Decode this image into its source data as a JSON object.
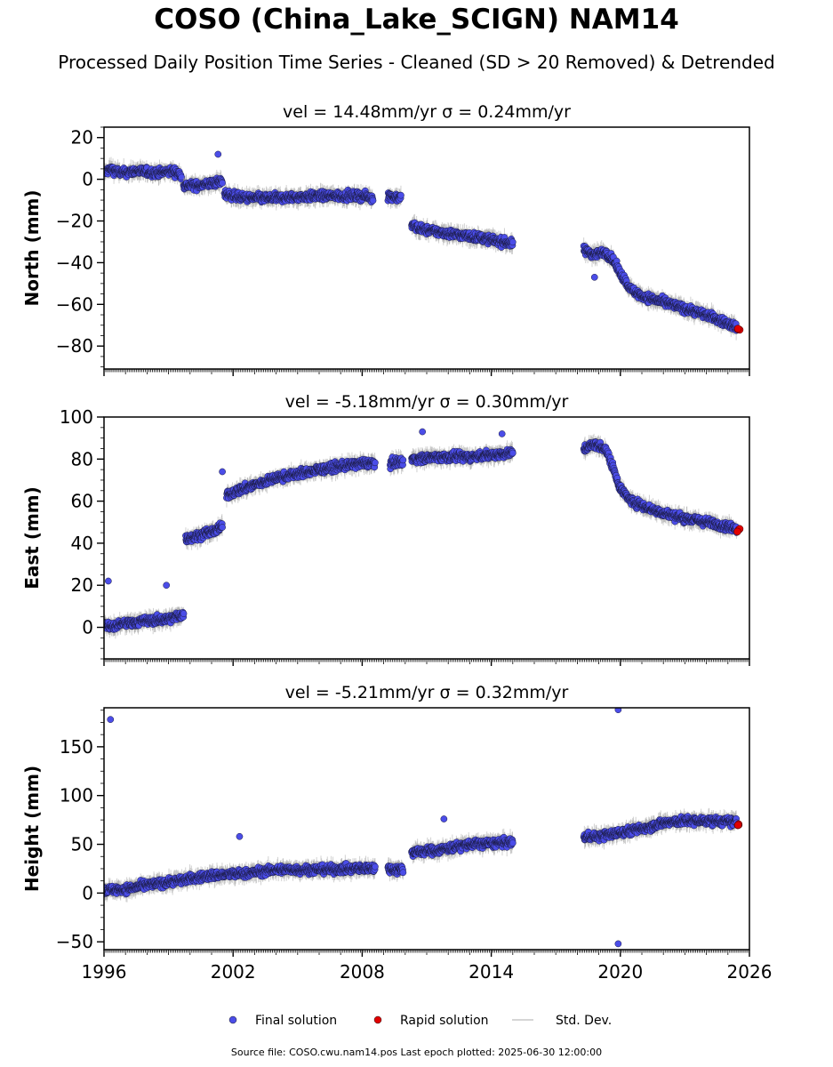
{
  "header": {
    "title": "COSO (China_Lake_SCIGN) NAM14",
    "subtitle": "Processed Daily Position Time Series - Cleaned (SD > 20 Removed) & Detrended"
  },
  "footer": {
    "source_text": "Source file: COSO.cwu.nam14.pos  Last epoch plotted: 2025-06-30 12:00:00"
  },
  "legend": {
    "placement": "bottom-center",
    "items": [
      {
        "label": "Final solution",
        "color": "#4b4de8"
      },
      {
        "label": "Rapid solution",
        "color": "#e00000"
      },
      {
        "label": "Std. Dev.",
        "color": "#c8c8c8"
      }
    ]
  },
  "chart_data": [
    {
      "type": "scatter",
      "title": "vel = 14.48mm/yr   σ = 0.24mm/yr",
      "ylabel": "North (mm)",
      "xlim": [
        1996,
        2026
      ],
      "ylim": [
        -91,
        25
      ],
      "yticks": [
        20,
        0,
        -20,
        -40,
        -60,
        -80
      ],
      "xticks": [
        1996,
        2002,
        2008,
        2014,
        2020,
        2026
      ],
      "series": [
        {
          "name": "Final solution",
          "segments": [
            {
              "x": [
                1996.0,
                1996.3,
                1996.8,
                1997.5,
                1998.5,
                1999.2,
                1999.6
              ],
              "y": [
                3,
                5,
                3,
                4,
                3,
                4,
                2
              ]
            },
            {
              "x": [
                1999.7,
                2000.3,
                2001.0,
                2001.5
              ],
              "y": [
                -3,
                -3,
                -2,
                -1
              ]
            },
            {
              "x": [
                2001.6,
                2002.5,
                2004.0,
                2006.0,
                2008.0,
                2008.5
              ],
              "y": [
                -7,
                -9,
                -9,
                -8,
                -8,
                -9
              ]
            },
            {
              "x": [
                2009.2,
                2009.8
              ],
              "y": [
                -8,
                -9
              ]
            },
            {
              "x": [
                2010.3,
                2010.8,
                2012.0,
                2013.5,
                2015.0
              ],
              "y": [
                -22,
                -24,
                -26,
                -28,
                -31
              ]
            },
            {
              "x": [
                2018.3,
                2018.8,
                2019.3,
                2019.6,
                2020.0,
                2020.5,
                2021.0,
                2022.0,
                2023.0,
                2024.0,
                2025.4
              ],
              "y": [
                -34,
                -36,
                -35,
                -38,
                -45,
                -53,
                -56,
                -59,
                -62,
                -65,
                -71
              ]
            }
          ]
        },
        {
          "name": "Rapid solution",
          "x": [
            2025.5
          ],
          "y": [
            -72
          ]
        }
      ],
      "outliers": [
        {
          "x": 2001.3,
          "y": 12
        },
        {
          "x": 2018.8,
          "y": -47
        }
      ]
    },
    {
      "type": "scatter",
      "title": "vel = -5.18mm/yr   σ = 0.30mm/yr",
      "ylabel": "East (mm)",
      "xlim": [
        1996,
        2026
      ],
      "ylim": [
        -15,
        100
      ],
      "yticks": [
        100,
        80,
        60,
        40,
        20,
        0
      ],
      "xticks": [
        1996,
        2002,
        2008,
        2014,
        2020,
        2026
      ],
      "series": [
        {
          "name": "Final solution",
          "segments": [
            {
              "x": [
                1996.0,
                1996.3,
                1997.0,
                1998.0,
                1999.0,
                1999.7
              ],
              "y": [
                2,
                0,
                2,
                3,
                4,
                6
              ]
            },
            {
              "x": [
                1999.8,
                2000.5,
                2001.2,
                2001.5
              ],
              "y": [
                42,
                44,
                46,
                48
              ]
            },
            {
              "x": [
                2001.7,
                2002.5,
                2004.0,
                2006.0,
                2008.0,
                2008.6
              ],
              "y": [
                63,
                66,
                71,
                75,
                78,
                78
              ]
            },
            {
              "x": [
                2009.3,
                2009.9
              ],
              "y": [
                78,
                79
              ]
            },
            {
              "x": [
                2010.3,
                2011.5,
                2013.0,
                2015.0
              ],
              "y": [
                80,
                81,
                81,
                83
              ]
            },
            {
              "x": [
                2018.3,
                2018.8,
                2019.3,
                2019.7,
                2020.0,
                2020.5,
                2021.5,
                2022.5,
                2023.5,
                2024.5,
                2025.4
              ],
              "y": [
                85,
                87,
                85,
                75,
                66,
                60,
                56,
                53,
                51,
                49,
                47
              ]
            }
          ]
        },
        {
          "name": "Rapid solution",
          "x": [
            2025.5
          ],
          "y": [
            46
          ]
        }
      ],
      "outliers": [
        {
          "x": 1996.2,
          "y": 22
        },
        {
          "x": 1998.9,
          "y": 20
        },
        {
          "x": 2010.8,
          "y": 93
        },
        {
          "x": 2014.5,
          "y": 92
        },
        {
          "x": 2001.5,
          "y": 74
        }
      ]
    },
    {
      "type": "scatter",
      "title": "vel = -5.21mm/yr   σ = 0.32mm/yr",
      "ylabel": "Height (mm)",
      "xlim": [
        1996,
        2026
      ],
      "ylim": [
        -58,
        190
      ],
      "yticks": [
        150,
        100,
        50,
        0,
        -50
      ],
      "xticks": [
        1996,
        2002,
        2008,
        2014,
        2020,
        2026
      ],
      "xticklabels": [
        "1996",
        "2002",
        "2008",
        "2014",
        "2020",
        "2026"
      ],
      "series": [
        {
          "name": "Final solution",
          "segments": [
            {
              "x": [
                1996.0,
                1997.0,
                1998.0,
                1999.5,
                2001.0,
                2002.5,
                2004.0,
                2006.0,
                2008.0,
                2008.6
              ],
              "y": [
                3,
                4,
                8,
                13,
                18,
                20,
                24,
                24,
                25,
                26
              ]
            },
            {
              "x": [
                2009.2,
                2009.9
              ],
              "y": [
                25,
                24
              ]
            },
            {
              "x": [
                2010.3,
                2011.5,
                2013.0,
                2015.0
              ],
              "y": [
                42,
                44,
                50,
                52
              ]
            },
            {
              "x": [
                2018.3,
                2019.0,
                2020.0,
                2021.0,
                2022.0,
                2023.0,
                2024.0,
                2025.4
              ],
              "y": [
                58,
                58,
                62,
                66,
                72,
                74,
                74,
                73
              ]
            }
          ]
        },
        {
          "name": "Rapid solution",
          "x": [
            2025.5
          ],
          "y": [
            70
          ]
        }
      ],
      "outliers": [
        {
          "x": 1996.3,
          "y": 178
        },
        {
          "x": 2019.9,
          "y": 188
        },
        {
          "x": 2019.9,
          "y": -52
        },
        {
          "x": 2002.3,
          "y": 58
        },
        {
          "x": 2011.8,
          "y": 76
        }
      ]
    }
  ]
}
